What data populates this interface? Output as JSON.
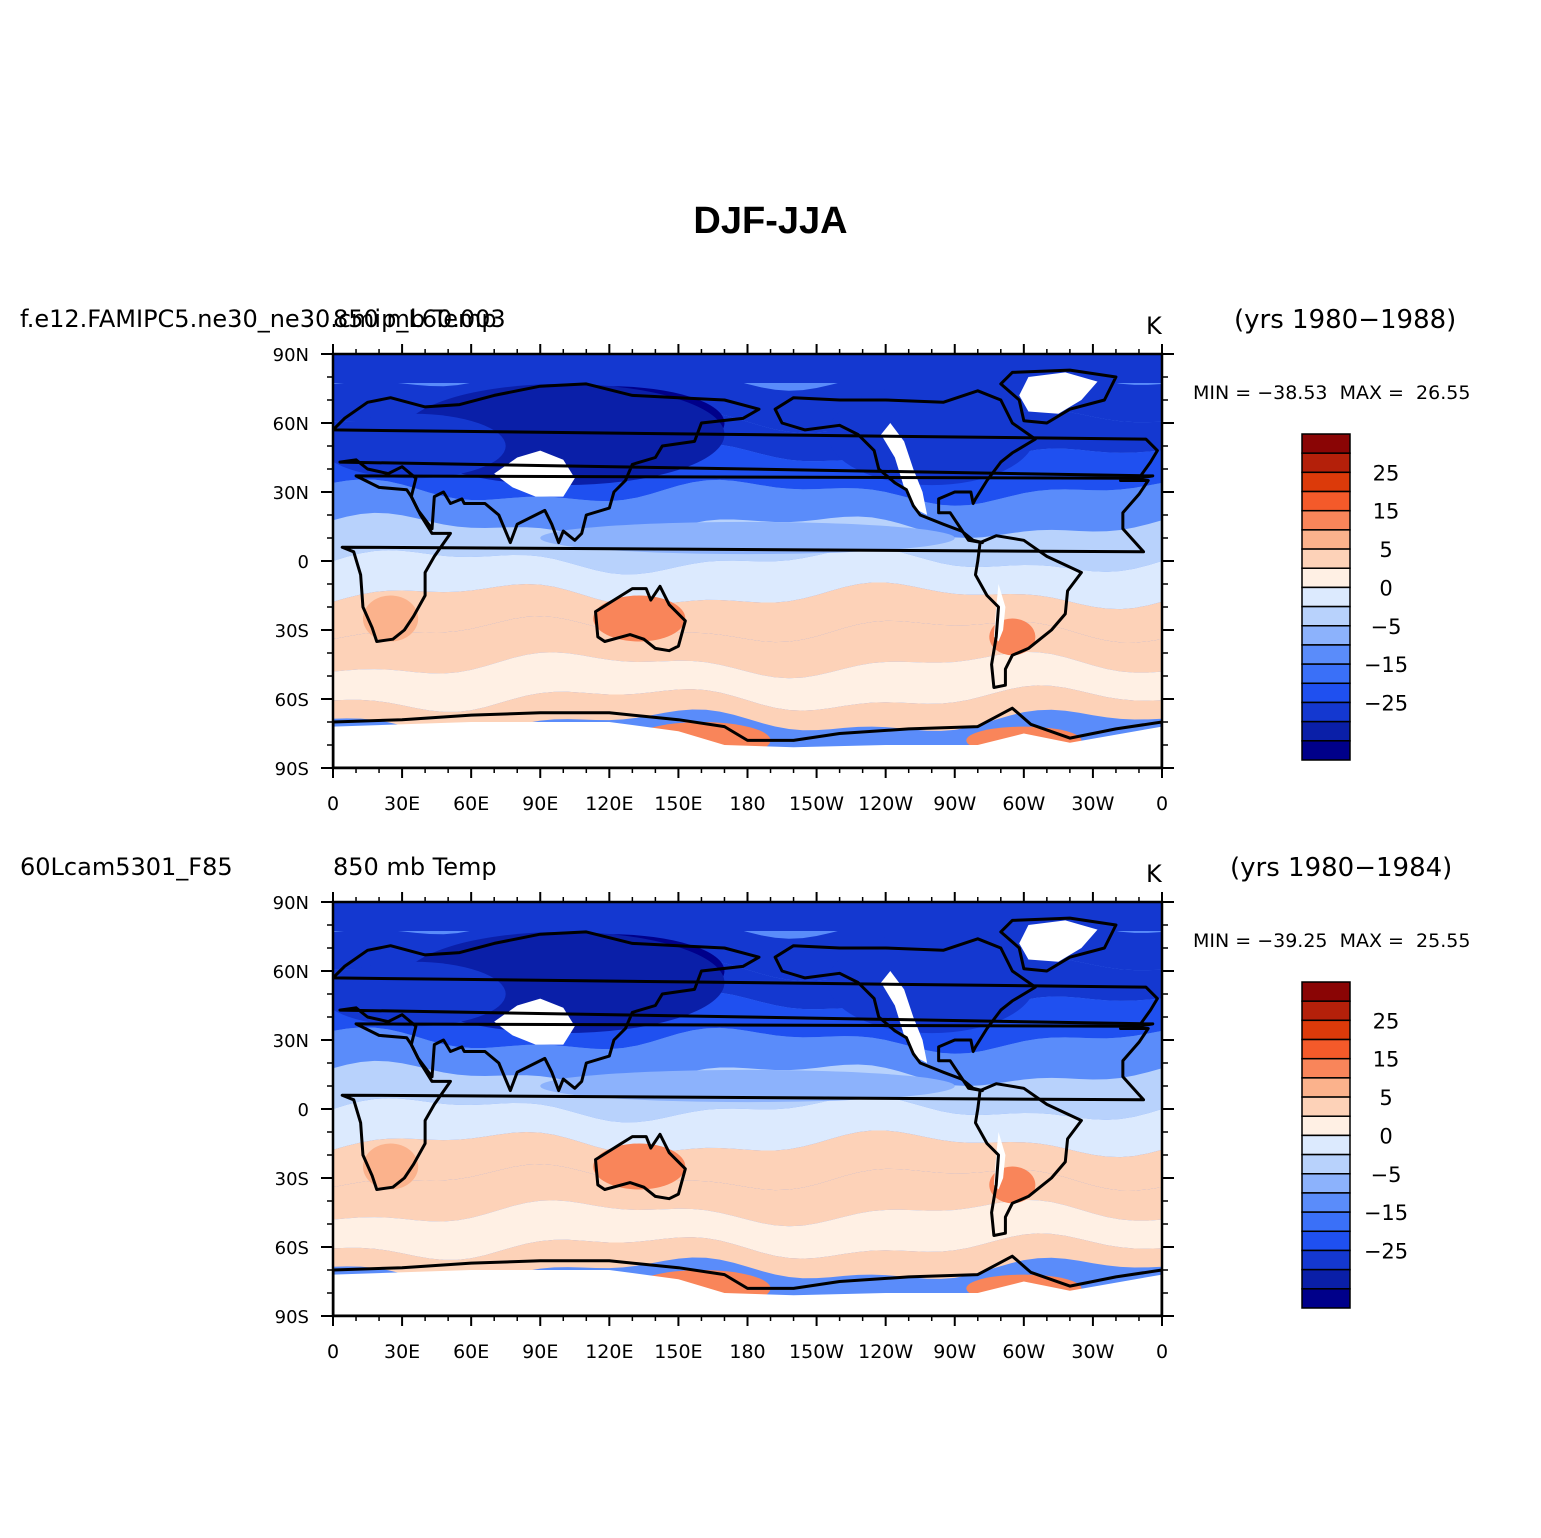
{
  "title": "DJF-JJA",
  "colors": {
    "levels": [
      -30,
      -25,
      -20,
      -15,
      -10,
      -5,
      -2,
      0,
      2,
      5,
      10,
      15,
      20,
      25,
      30
    ],
    "fills": [
      "#00008a",
      "#0a1fa8",
      "#1438d0",
      "#1f50f0",
      "#3a70f8",
      "#5a8cfa",
      "#8cb2fc",
      "#b8d2fc",
      "#dceafe",
      "#fff0e4",
      "#fdd2b8",
      "#fbb28c",
      "#f9855a",
      "#f45a2a",
      "#dc3a0a",
      "#b4200a",
      "#8a0505"
    ],
    "land_blank": "#ffffff",
    "coast": "#000000"
  },
  "colorbar": {
    "tick_labels": [
      "25",
      "15",
      "5",
      "0",
      "−5",
      "−15",
      "−25"
    ]
  },
  "axes": {
    "x_ticks": [
      "0",
      "30E",
      "60E",
      "90E",
      "120E",
      "150E",
      "180",
      "150W",
      "120W",
      "90W",
      "60W",
      "30W",
      "0"
    ],
    "y_ticks": [
      "90N",
      "60N",
      "30N",
      "0",
      "30S",
      "60S",
      "90S"
    ]
  },
  "panels": [
    {
      "case": "f.e12.FAMIPC5.ne30_ne30.cmip_L60.003",
      "variable": "850 mb Temp",
      "units": "K",
      "years": "(yrs 1980−1988)",
      "minmax": "MIN = −38.53  MAX =  26.55"
    },
    {
      "case": "60Lcam5301_F85",
      "variable": "850 mb Temp",
      "units": "K",
      "years": "(yrs 1980−1984)",
      "minmax": "MIN = −39.25  MAX =  25.55"
    }
  ],
  "chart_data": [
    {
      "type": "heatmap",
      "panel": 1,
      "field": "850 mb Temp difference DJF-JJA",
      "units": "K",
      "min": -38.53,
      "max": 26.55,
      "xlim": [
        0,
        360
      ],
      "ylim": [
        -90,
        90
      ],
      "zonal_profile": {
        "lat": [
          80,
          60,
          45,
          30,
          15,
          0,
          -15,
          -30,
          -45,
          -60,
          -70
        ],
        "value": [
          -22,
          -26,
          -20,
          -12,
          -3,
          0,
          3,
          8,
          6,
          4,
          10
        ]
      }
    },
    {
      "type": "heatmap",
      "panel": 2,
      "field": "850 mb Temp difference DJF-JJA",
      "units": "K",
      "min": -39.25,
      "max": 25.55,
      "xlim": [
        0,
        360
      ],
      "ylim": [
        -90,
        90
      ],
      "zonal_profile": {
        "lat": [
          80,
          60,
          45,
          30,
          15,
          0,
          -15,
          -30,
          -45,
          -60,
          -70
        ],
        "value": [
          -21,
          -26,
          -20,
          -12,
          -3,
          0,
          3,
          8,
          6,
          4,
          10
        ]
      }
    }
  ]
}
